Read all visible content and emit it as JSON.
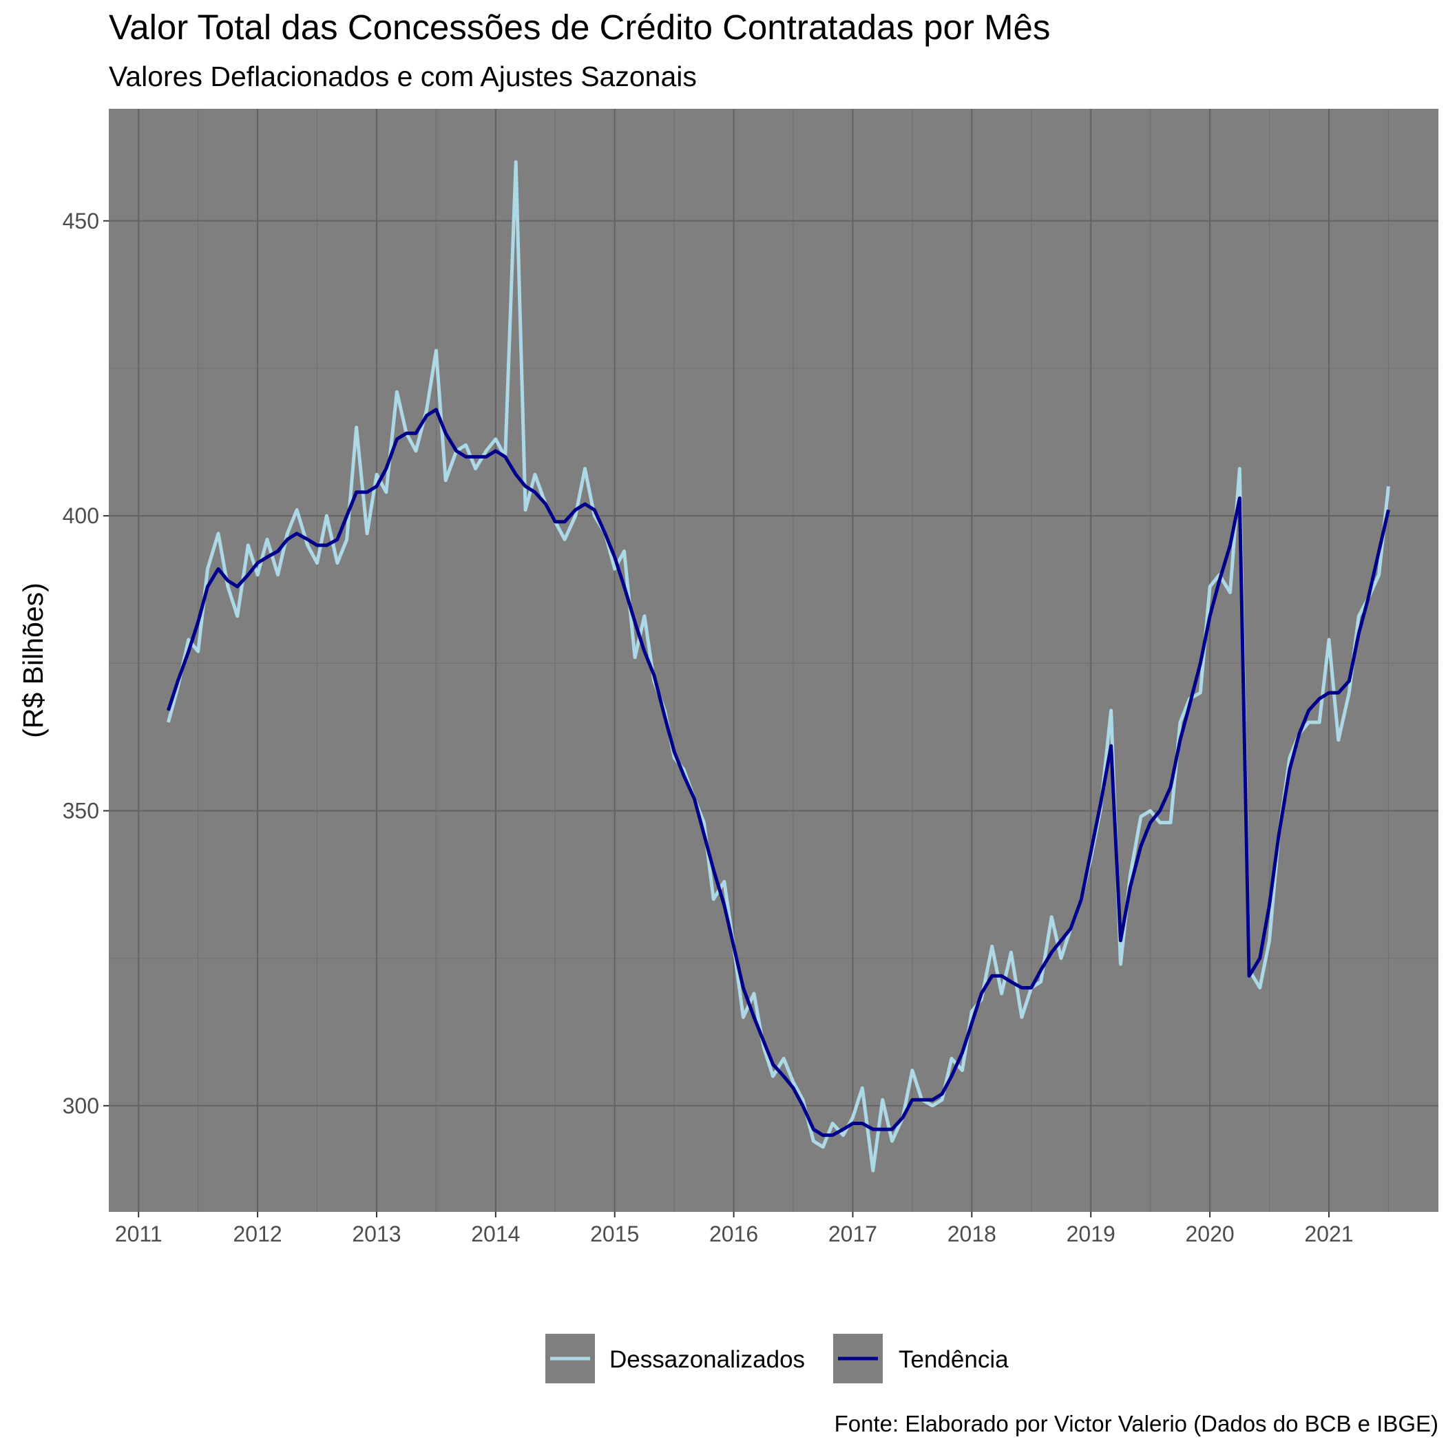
{
  "chart_data": {
    "type": "line",
    "title": "Valor Total das Concessões de Crédito Contratadas por Mês",
    "subtitle": "Valores Deflacionados e com Ajustes Sazonais",
    "xlabel": "",
    "ylabel": "(R$ Bilhões)",
    "caption": "Fonte: Elaborado por Victor Valerio (Dados do BCB e IBGE)",
    "x_range": [
      2010.75,
      2021.92
    ],
    "ylim": [
      282,
      469
    ],
    "x_ticks": [
      2011,
      2012,
      2013,
      2014,
      2015,
      2016,
      2017,
      2018,
      2019,
      2020,
      2021
    ],
    "y_ticks": [
      300,
      350,
      400,
      450
    ],
    "grid": true,
    "legend_position": "bottom",
    "panel_background": "#7f7f7f",
    "series": [
      {
        "name": "Dessazonalizados",
        "color": "#add8e6",
        "points": [
          [
            2011.25,
            365
          ],
          [
            2011.33,
            371
          ],
          [
            2011.42,
            379
          ],
          [
            2011.5,
            377
          ],
          [
            2011.58,
            391
          ],
          [
            2011.67,
            397
          ],
          [
            2011.75,
            388
          ],
          [
            2011.83,
            383
          ],
          [
            2011.92,
            395
          ],
          [
            2012.0,
            390
          ],
          [
            2012.08,
            396
          ],
          [
            2012.17,
            390
          ],
          [
            2012.25,
            397
          ],
          [
            2012.33,
            401
          ],
          [
            2012.42,
            395
          ],
          [
            2012.5,
            392
          ],
          [
            2012.58,
            400
          ],
          [
            2012.67,
            392
          ],
          [
            2012.75,
            396
          ],
          [
            2012.83,
            415
          ],
          [
            2012.92,
            397
          ],
          [
            2013.0,
            407
          ],
          [
            2013.08,
            404
          ],
          [
            2013.17,
            421
          ],
          [
            2013.25,
            414
          ],
          [
            2013.33,
            411
          ],
          [
            2013.42,
            418
          ],
          [
            2013.5,
            428
          ],
          [
            2013.58,
            406
          ],
          [
            2013.67,
            411
          ],
          [
            2013.75,
            412
          ],
          [
            2013.83,
            408
          ],
          [
            2013.92,
            411
          ],
          [
            2014.0,
            413
          ],
          [
            2014.08,
            410
          ],
          [
            2014.17,
            460
          ],
          [
            2014.25,
            401
          ],
          [
            2014.33,
            407
          ],
          [
            2014.42,
            402
          ],
          [
            2014.5,
            399
          ],
          [
            2014.58,
            396
          ],
          [
            2014.67,
            400
          ],
          [
            2014.75,
            408
          ],
          [
            2014.83,
            400
          ],
          [
            2014.92,
            397
          ],
          [
            2015.0,
            391
          ],
          [
            2015.08,
            394
          ],
          [
            2015.17,
            376
          ],
          [
            2015.25,
            383
          ],
          [
            2015.33,
            372
          ],
          [
            2015.42,
            367
          ],
          [
            2015.5,
            359
          ],
          [
            2015.58,
            357
          ],
          [
            2015.67,
            352
          ],
          [
            2015.75,
            348
          ],
          [
            2015.83,
            335
          ],
          [
            2015.92,
            338
          ],
          [
            2016.0,
            327
          ],
          [
            2016.08,
            315
          ],
          [
            2016.17,
            319
          ],
          [
            2016.25,
            310
          ],
          [
            2016.33,
            305
          ],
          [
            2016.42,
            308
          ],
          [
            2016.5,
            304
          ],
          [
            2016.58,
            301
          ],
          [
            2016.67,
            294
          ],
          [
            2016.75,
            293
          ],
          [
            2016.83,
            297
          ],
          [
            2016.92,
            295
          ],
          [
            2017.0,
            298
          ],
          [
            2017.08,
            303
          ],
          [
            2017.17,
            289
          ],
          [
            2017.25,
            301
          ],
          [
            2017.33,
            294
          ],
          [
            2017.42,
            298
          ],
          [
            2017.5,
            306
          ],
          [
            2017.58,
            301
          ],
          [
            2017.67,
            300
          ],
          [
            2017.75,
            301
          ],
          [
            2017.83,
            308
          ],
          [
            2017.92,
            306
          ],
          [
            2018.0,
            316
          ],
          [
            2018.08,
            318
          ],
          [
            2018.17,
            327
          ],
          [
            2018.25,
            319
          ],
          [
            2018.33,
            326
          ],
          [
            2018.42,
            315
          ],
          [
            2018.5,
            320
          ],
          [
            2018.58,
            321
          ],
          [
            2018.67,
            332
          ],
          [
            2018.75,
            325
          ],
          [
            2018.83,
            330
          ],
          [
            2018.92,
            335
          ],
          [
            2019.0,
            342
          ],
          [
            2019.08,
            350
          ],
          [
            2019.17,
            367
          ],
          [
            2019.25,
            324
          ],
          [
            2019.33,
            339
          ],
          [
            2019.42,
            349
          ],
          [
            2019.5,
            350
          ],
          [
            2019.58,
            348
          ],
          [
            2019.67,
            348
          ],
          [
            2019.75,
            365
          ],
          [
            2019.83,
            369
          ],
          [
            2019.92,
            370
          ],
          [
            2020.0,
            388
          ],
          [
            2020.08,
            390
          ],
          [
            2020.17,
            387
          ],
          [
            2020.25,
            408
          ],
          [
            2020.33,
            323
          ],
          [
            2020.42,
            320
          ],
          [
            2020.5,
            328
          ],
          [
            2020.58,
            346
          ],
          [
            2020.67,
            359
          ],
          [
            2020.75,
            363
          ],
          [
            2020.83,
            365
          ],
          [
            2020.92,
            365
          ],
          [
            2021.0,
            379
          ],
          [
            2021.08,
            362
          ],
          [
            2021.17,
            370
          ],
          [
            2021.25,
            383
          ],
          [
            2021.33,
            386
          ],
          [
            2021.42,
            390
          ],
          [
            2021.5,
            405
          ]
        ]
      },
      {
        "name": "Tendência",
        "color": "#00008b",
        "points": [
          [
            2011.25,
            367
          ],
          [
            2011.33,
            372
          ],
          [
            2011.42,
            377
          ],
          [
            2011.5,
            382
          ],
          [
            2011.58,
            388
          ],
          [
            2011.67,
            391
          ],
          [
            2011.75,
            389
          ],
          [
            2011.83,
            388
          ],
          [
            2011.92,
            390
          ],
          [
            2012.0,
            392
          ],
          [
            2012.08,
            393
          ],
          [
            2012.17,
            394
          ],
          [
            2012.25,
            396
          ],
          [
            2012.33,
            397
          ],
          [
            2012.42,
            396
          ],
          [
            2012.5,
            395
          ],
          [
            2012.58,
            395
          ],
          [
            2012.67,
            396
          ],
          [
            2012.75,
            400
          ],
          [
            2012.83,
            404
          ],
          [
            2012.92,
            404
          ],
          [
            2013.0,
            405
          ],
          [
            2013.08,
            408
          ],
          [
            2013.17,
            413
          ],
          [
            2013.25,
            414
          ],
          [
            2013.33,
            414
          ],
          [
            2013.42,
            417
          ],
          [
            2013.5,
            418
          ],
          [
            2013.58,
            414
          ],
          [
            2013.67,
            411
          ],
          [
            2013.75,
            410
          ],
          [
            2013.83,
            410
          ],
          [
            2013.92,
            410
          ],
          [
            2014.0,
            411
          ],
          [
            2014.08,
            410
          ],
          [
            2014.17,
            407
          ],
          [
            2014.25,
            405
          ],
          [
            2014.33,
            404
          ],
          [
            2014.42,
            402
          ],
          [
            2014.5,
            399
          ],
          [
            2014.58,
            399
          ],
          [
            2014.67,
            401
          ],
          [
            2014.75,
            402
          ],
          [
            2014.83,
            401
          ],
          [
            2014.92,
            397
          ],
          [
            2015.0,
            393
          ],
          [
            2015.08,
            388
          ],
          [
            2015.17,
            382
          ],
          [
            2015.25,
            377
          ],
          [
            2015.33,
            373
          ],
          [
            2015.42,
            366
          ],
          [
            2015.5,
            360
          ],
          [
            2015.58,
            356
          ],
          [
            2015.67,
            352
          ],
          [
            2015.75,
            346
          ],
          [
            2015.83,
            340
          ],
          [
            2015.92,
            334
          ],
          [
            2016.0,
            327
          ],
          [
            2016.08,
            320
          ],
          [
            2016.17,
            315
          ],
          [
            2016.25,
            311
          ],
          [
            2016.33,
            307
          ],
          [
            2016.42,
            305
          ],
          [
            2016.5,
            303
          ],
          [
            2016.58,
            300
          ],
          [
            2016.67,
            296
          ],
          [
            2016.75,
            295
          ],
          [
            2016.83,
            295
          ],
          [
            2016.92,
            296
          ],
          [
            2017.0,
            297
          ],
          [
            2017.08,
            297
          ],
          [
            2017.17,
            296
          ],
          [
            2017.25,
            296
          ],
          [
            2017.33,
            296
          ],
          [
            2017.42,
            298
          ],
          [
            2017.5,
            301
          ],
          [
            2017.58,
            301
          ],
          [
            2017.67,
            301
          ],
          [
            2017.75,
            302
          ],
          [
            2017.83,
            305
          ],
          [
            2017.92,
            309
          ],
          [
            2018.0,
            314
          ],
          [
            2018.08,
            319
          ],
          [
            2018.17,
            322
          ],
          [
            2018.25,
            322
          ],
          [
            2018.33,
            321
          ],
          [
            2018.42,
            320
          ],
          [
            2018.5,
            320
          ],
          [
            2018.58,
            323
          ],
          [
            2018.67,
            326
          ],
          [
            2018.75,
            328
          ],
          [
            2018.83,
            330
          ],
          [
            2018.92,
            335
          ],
          [
            2019.0,
            343
          ],
          [
            2019.08,
            351
          ],
          [
            2019.17,
            361
          ],
          [
            2019.25,
            328
          ],
          [
            2019.33,
            337
          ],
          [
            2019.42,
            344
          ],
          [
            2019.5,
            348
          ],
          [
            2019.58,
            350
          ],
          [
            2019.67,
            354
          ],
          [
            2019.75,
            362
          ],
          [
            2019.83,
            368
          ],
          [
            2019.92,
            375
          ],
          [
            2020.0,
            383
          ],
          [
            2020.08,
            389
          ],
          [
            2020.17,
            395
          ],
          [
            2020.25,
            403
          ],
          [
            2020.33,
            322
          ],
          [
            2020.42,
            325
          ],
          [
            2020.5,
            334
          ],
          [
            2020.58,
            346
          ],
          [
            2020.67,
            357
          ],
          [
            2020.75,
            363
          ],
          [
            2020.83,
            367
          ],
          [
            2020.92,
            369
          ],
          [
            2021.0,
            370
          ],
          [
            2021.08,
            370
          ],
          [
            2021.17,
            372
          ],
          [
            2021.25,
            380
          ],
          [
            2021.33,
            386
          ],
          [
            2021.42,
            394
          ],
          [
            2021.5,
            401
          ]
        ]
      }
    ]
  }
}
